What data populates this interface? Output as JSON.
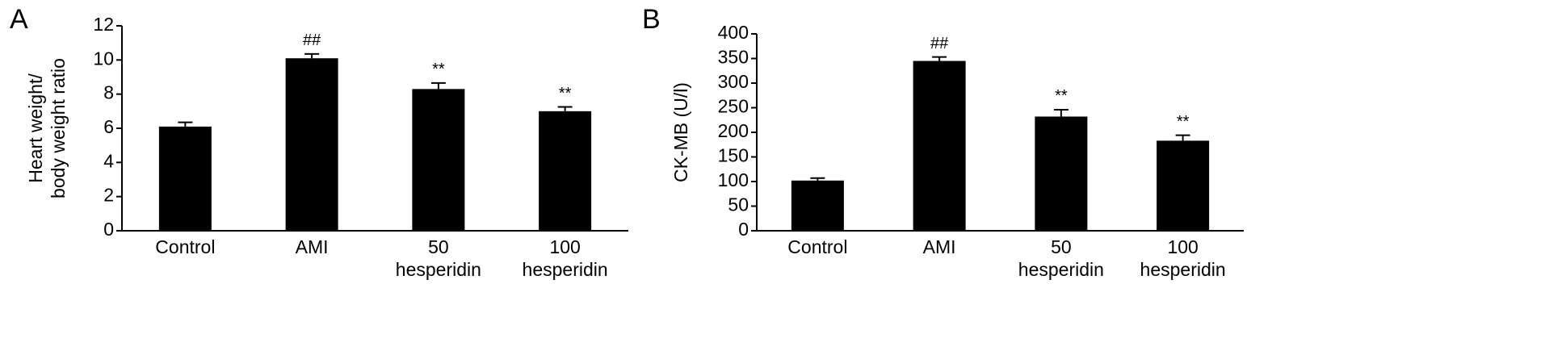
{
  "chart_data": [
    {
      "type": "bar",
      "panel": "A",
      "ylabel": [
        "Heart weight/",
        "body weight ratio"
      ],
      "categories": [
        "Control",
        "AMI",
        "50 hesperidin",
        "100 hesperidin"
      ],
      "values": [
        6.1,
        10.1,
        8.3,
        7.0
      ],
      "errors": [
        0.25,
        0.25,
        0.35,
        0.25
      ],
      "annotations": [
        null,
        "##",
        "**",
        "**"
      ],
      "color": "#000000",
      "ylim": [
        0,
        12
      ],
      "yticks": [
        0,
        2,
        4,
        6,
        8,
        10,
        12
      ]
    },
    {
      "type": "bar",
      "panel": "B",
      "ylabel": [
        "CK-MB (U/l)"
      ],
      "categories": [
        "Control",
        "AMI",
        "50 hesperidin",
        "100 hesperidin"
      ],
      "values": [
        102,
        345,
        232,
        183
      ],
      "errors": [
        5,
        8,
        14,
        11
      ],
      "annotations": [
        null,
        "##",
        "**",
        "**"
      ],
      "color": "#000000",
      "ylim": [
        0,
        400
      ],
      "yticks": [
        0,
        50,
        100,
        150,
        200,
        250,
        300,
        350,
        400
      ]
    }
  ]
}
